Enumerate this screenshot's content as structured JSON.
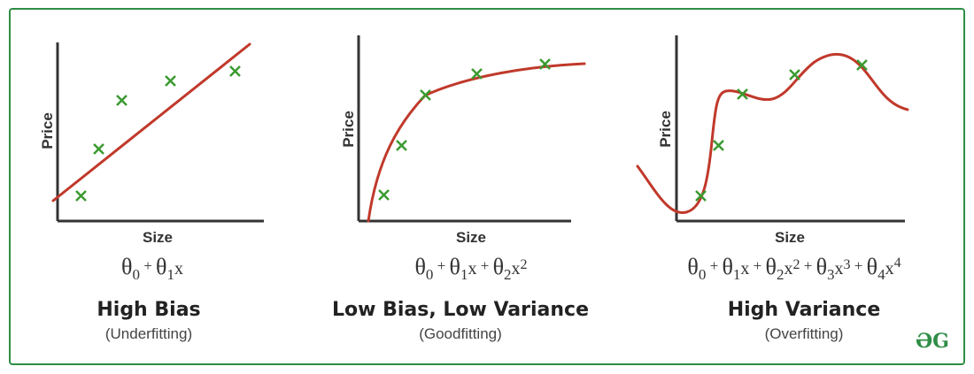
{
  "colors": {
    "curve": "#c0392b",
    "marker": "#3a9a2f",
    "axis": "#333333",
    "border": "#2f8d46"
  },
  "panels": [
    {
      "ylabel": "Price",
      "xlabel": "Size",
      "title": "High Bias",
      "subtitle": "(Underfitting)",
      "formula": {
        "t0": "θ",
        "s0": "0",
        "p1": " + ",
        "t1": "θ",
        "s1": "1",
        "x1": "x"
      }
    },
    {
      "ylabel": "Price",
      "xlabel": "Size",
      "title": "Low Bias, Low Variance",
      "subtitle": "(Goodfitting)",
      "formula": {
        "t0": "θ",
        "s0": "0",
        "p1": " + ",
        "t1": "θ",
        "s1": "1",
        "x1": "x",
        "p2": "  +  ",
        "t2": "θ",
        "s2": "2",
        "x2": "x",
        "e2": "2"
      }
    },
    {
      "ylabel": "Price",
      "xlabel": "Size",
      "title": "High Variance",
      "subtitle": "(Overfitting)",
      "formula": {
        "t0": "θ",
        "s0": "0",
        "p1": " + ",
        "t1": "θ",
        "s1": "1",
        "x1": "x",
        "p2": "  +  ",
        "t2": "θ",
        "s2": "2",
        "x2": "x",
        "e2": "2",
        "p3": "  +  ",
        "t3": "θ",
        "s3": "3",
        "x3": "x",
        "e3": "3",
        "p4": " + ",
        "t4": "θ",
        "s4": "4",
        "x4": "x",
        "e4": "4"
      }
    }
  ],
  "logo": "ƏG"
}
